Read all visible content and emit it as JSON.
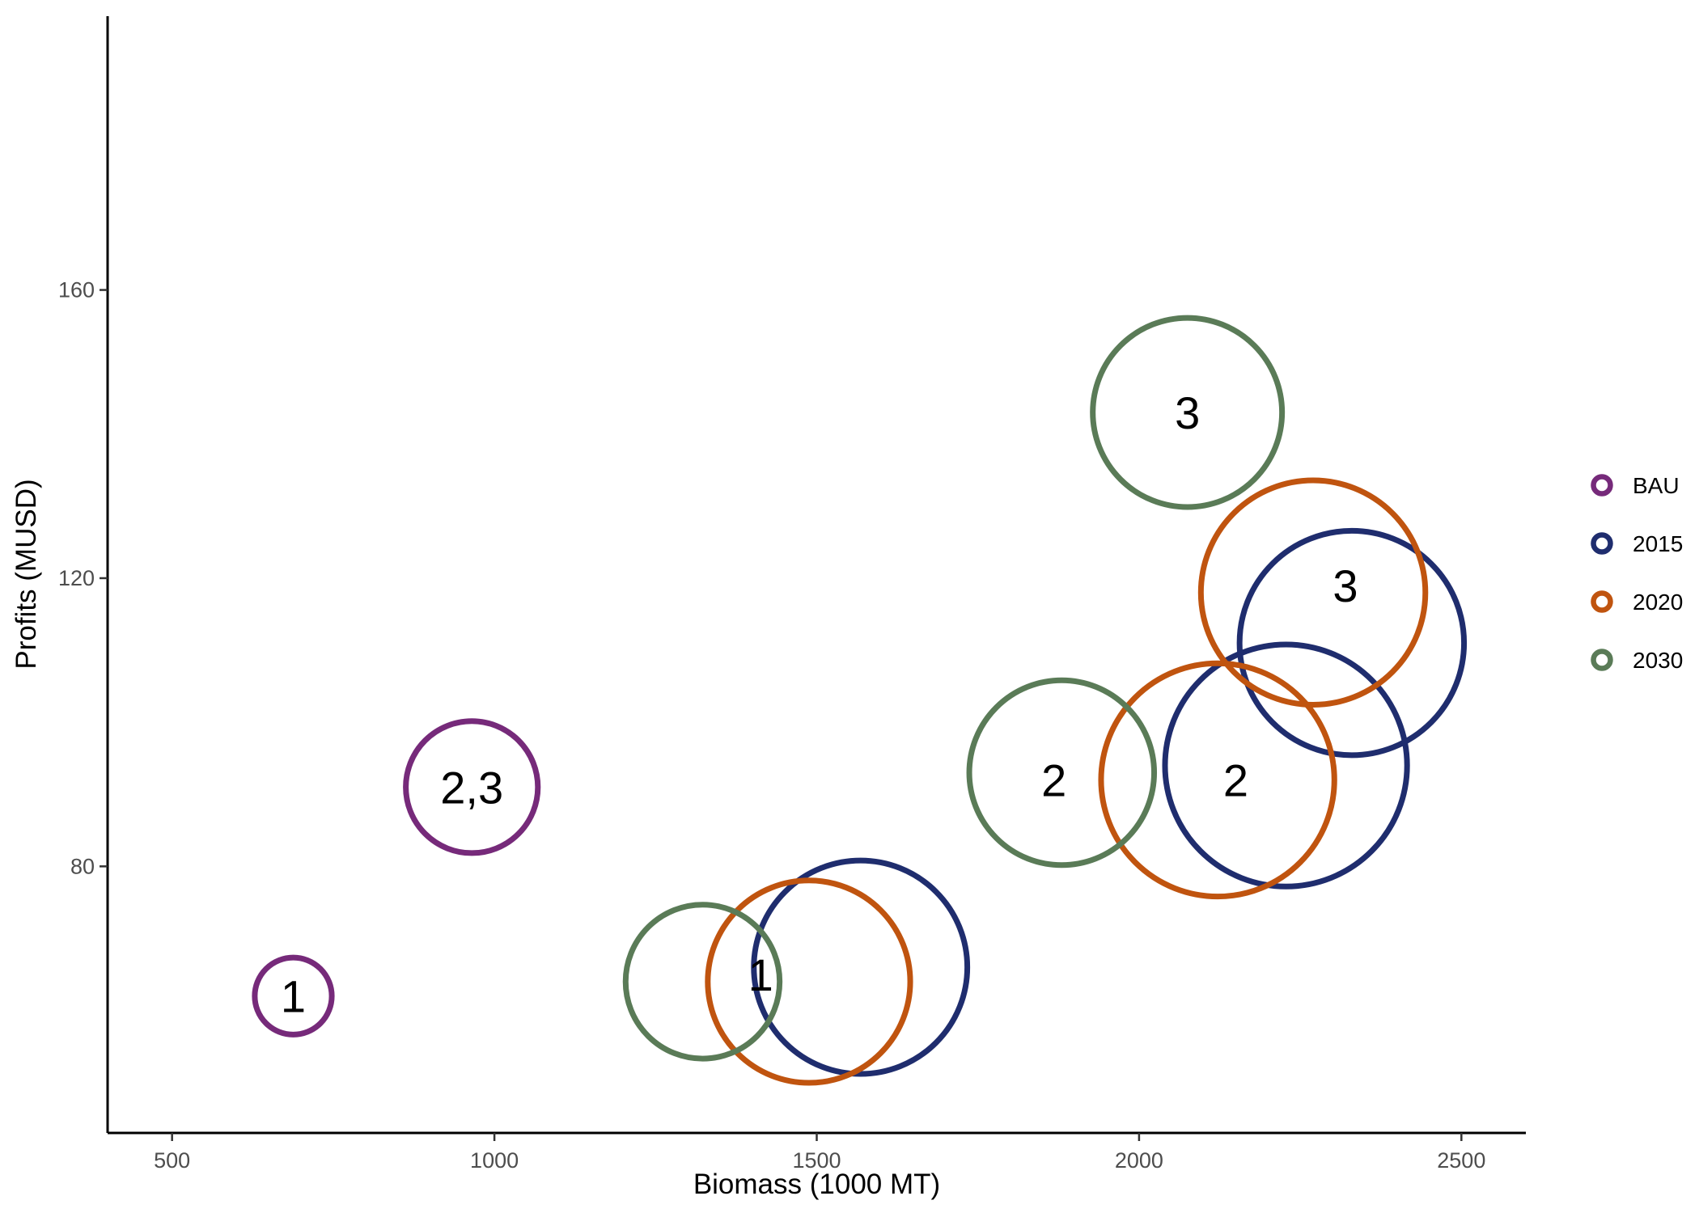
{
  "chart_data": {
    "type": "scatter",
    "title": "",
    "xlabel": "Biomass (1000 MT)",
    "ylabel": "Profits (MUSD)",
    "xlim": [
      400,
      2600
    ],
    "ylim": [
      43,
      198
    ],
    "x_ticks": [
      500,
      1000,
      1500,
      2000,
      2500
    ],
    "y_ticks": [
      80,
      120,
      160
    ],
    "grid": false,
    "legend_position": "right",
    "series": [
      {
        "name": "BAU",
        "color": "#762a7a",
        "points": [
          {
            "x": 688,
            "y": 62,
            "label": "1",
            "size": 0.35
          },
          {
            "x": 965,
            "y": 91,
            "label": "2,3",
            "size": 0.6
          }
        ]
      },
      {
        "name": "2015",
        "color": "#1f2d6e",
        "points": [
          {
            "x": 1568,
            "y": 66,
            "label": "",
            "size": 0.97
          },
          {
            "x": 2228,
            "y": 94,
            "label": "",
            "size": 1.1
          },
          {
            "x": 2330,
            "y": 111,
            "label": "",
            "size": 1.02
          }
        ]
      },
      {
        "name": "2020",
        "color": "#c0540f",
        "points": [
          {
            "x": 1488,
            "y": 64,
            "label": "",
            "size": 0.92
          },
          {
            "x": 2122,
            "y": 92,
            "label": "",
            "size": 1.06
          },
          {
            "x": 2270,
            "y": 118,
            "label": "",
            "size": 1.02
          }
        ]
      },
      {
        "name": "2030",
        "color": "#5a7b57",
        "points": [
          {
            "x": 1323,
            "y": 64,
            "label": "1",
            "size": 0.7
          },
          {
            "x": 1880,
            "y": 93,
            "label": "2",
            "size": 0.84
          },
          {
            "x": 2075,
            "y": 143,
            "label": "3",
            "size": 0.86
          }
        ]
      }
    ],
    "annotations": [
      {
        "text": "1",
        "x": 1413,
        "y": 65
      },
      {
        "text": "2",
        "x": 1868,
        "y": 92
      },
      {
        "text": "2",
        "x": 2150,
        "y": 92
      },
      {
        "text": "3",
        "x": 2075,
        "y": 143
      },
      {
        "text": "3",
        "x": 2320,
        "y": 119
      }
    ]
  }
}
